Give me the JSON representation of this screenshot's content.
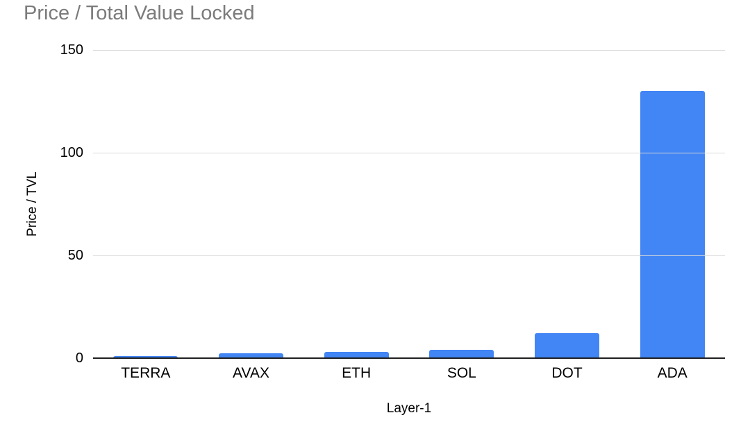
{
  "chart_data": {
    "type": "bar",
    "title": "Price / Total Value Locked",
    "xlabel": "Layer-1",
    "ylabel": "Price / TVL",
    "categories": [
      "TERRA",
      "AVAX",
      "ETH",
      "SOL",
      "DOT",
      "ADA"
    ],
    "values": [
      1,
      2.5,
      3,
      4,
      12,
      130
    ],
    "ylim": [
      0,
      150
    ],
    "yticks": [
      0,
      50,
      100,
      150
    ],
    "grid": true,
    "legend": "none",
    "colors": {
      "bar": "#4285f4",
      "title_text": "#7b7b7b",
      "gridline": "#dadada",
      "axis_line": "#1f1f1f",
      "background": "#ffffff"
    }
  }
}
